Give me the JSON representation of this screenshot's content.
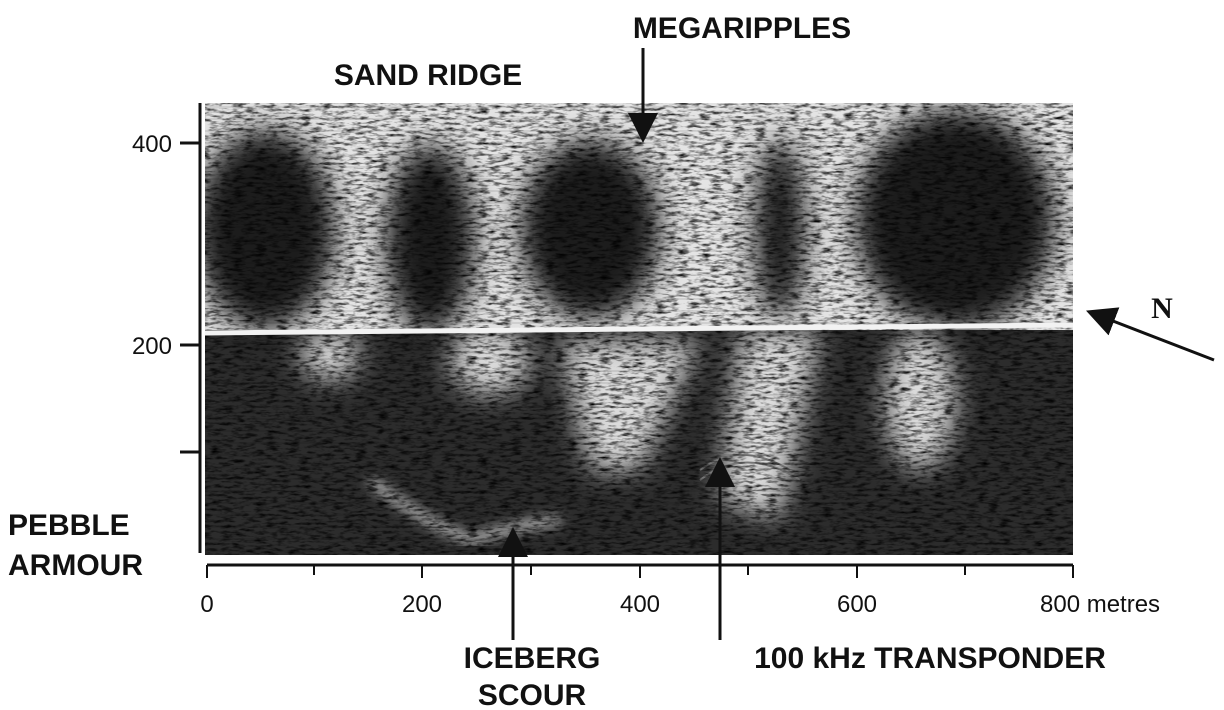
{
  "annotations": {
    "megaripples": "MEGARIPPLES",
    "sand_ridge": "SAND RIDGE",
    "pebble_armour": [
      "PEBBLE",
      "ARMOUR"
    ],
    "iceberg_scour": [
      "ICEBERG",
      "SCOUR"
    ],
    "transponder": "100 kHz TRANSPONDER",
    "north": "N"
  },
  "y_axis": {
    "labels": [
      "400",
      "200"
    ]
  },
  "x_axis": {
    "labels": [
      "0",
      "200",
      "400",
      "600",
      "800 metres"
    ]
  }
}
